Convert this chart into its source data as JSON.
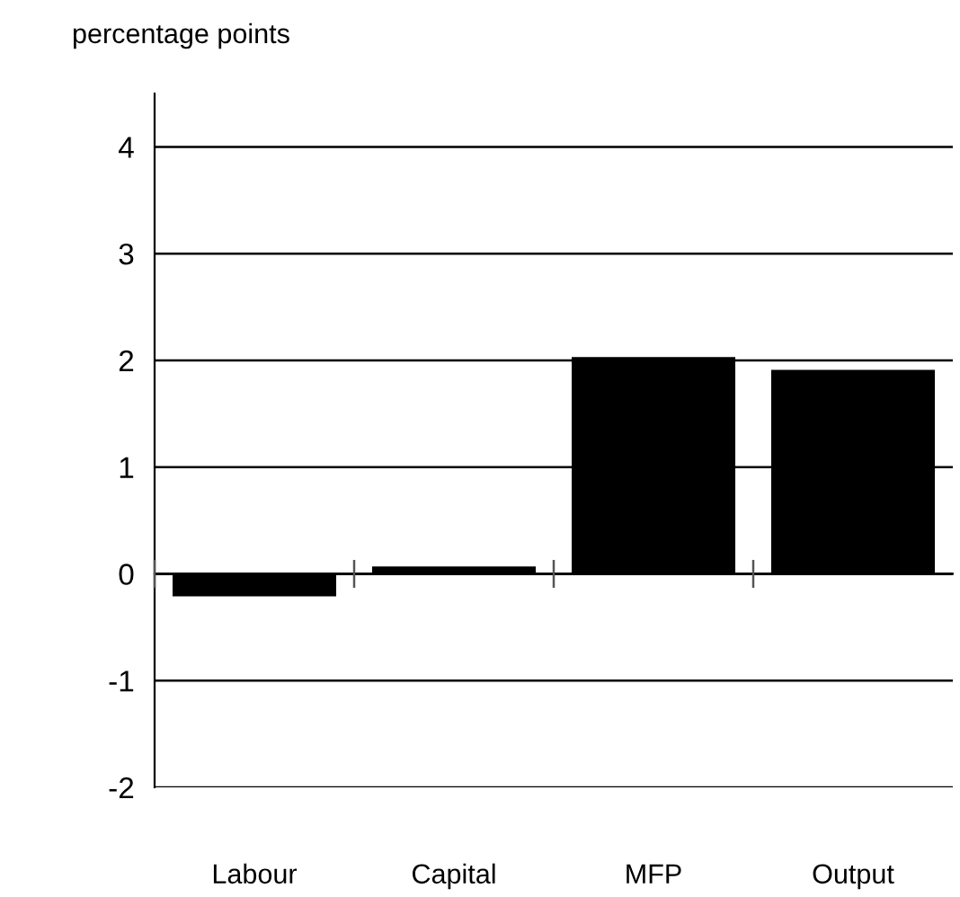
{
  "chart_data": {
    "type": "bar",
    "ylabel": "percentage points",
    "categories": [
      "Labour",
      "Capital",
      "MFP",
      "Output"
    ],
    "values": [
      -0.21,
      0.07,
      2.03,
      1.91
    ],
    "color": "#000000",
    "ylim": [
      -2,
      4.5
    ],
    "yticks": [
      -2,
      -1,
      0,
      1,
      2,
      3,
      4
    ],
    "grid": "y"
  }
}
